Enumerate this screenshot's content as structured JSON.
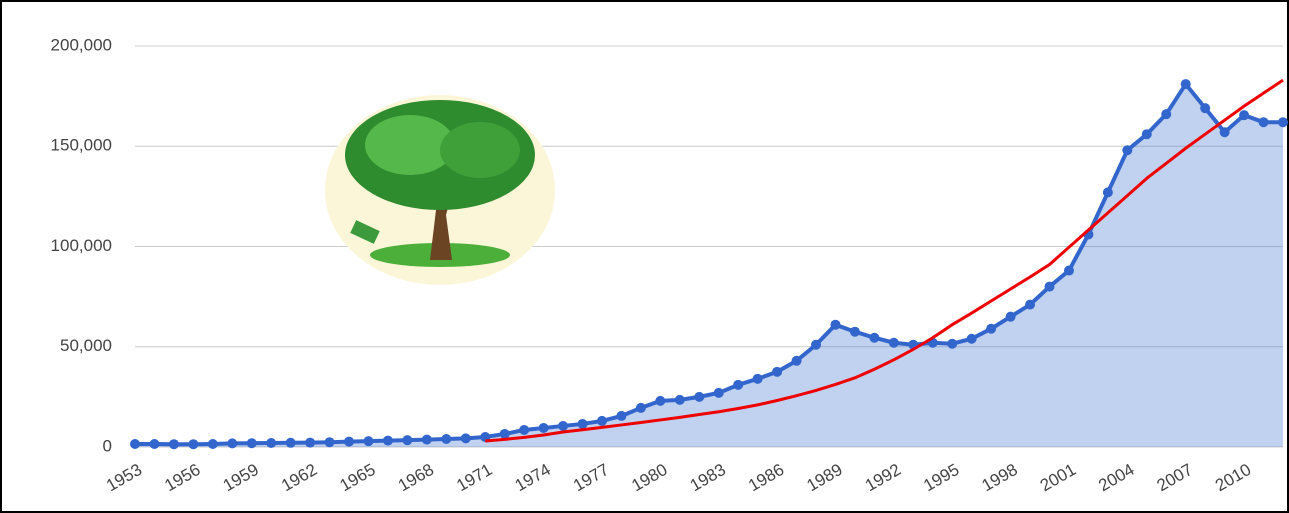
{
  "chart_data": {
    "type": "area",
    "categories": [
      "1953",
      null,
      null,
      "1956",
      null,
      null,
      "1959",
      null,
      null,
      "1962",
      null,
      null,
      "1965",
      null,
      null,
      "1968",
      null,
      null,
      "1971",
      null,
      null,
      "1974",
      null,
      null,
      "1977",
      null,
      null,
      "1980",
      null,
      null,
      "1983",
      null,
      null,
      "1986",
      null,
      null,
      "1989",
      null,
      null,
      "1992",
      null,
      null,
      "1995",
      null,
      null,
      "1998",
      null,
      null,
      "2001",
      null,
      null,
      "2004",
      null,
      null,
      "2007",
      null,
      null,
      "2010",
      null,
      null
    ],
    "series": [
      {
        "color": "#3366cc",
        "values": [
          1500,
          1500,
          1400,
          1400,
          1500,
          1800,
          1900,
          2000,
          2100,
          2200,
          2400,
          2700,
          2900,
          3200,
          3400,
          3700,
          4000,
          4300,
          5000,
          6500,
          8500,
          9500,
          10500,
          11500,
          13000,
          15500,
          19500,
          23000,
          23500,
          25000,
          27000,
          31000,
          34000,
          37500,
          43000,
          51000,
          61000,
          57500,
          54500,
          52000,
          51000,
          52000,
          51500,
          54000,
          59000,
          65000,
          71000,
          80000,
          88000,
          106000,
          127000,
          148000,
          156000,
          166000,
          181000,
          169000,
          157000,
          165500,
          162000,
          162000
        ]
      },
      {
        "color": "#ee0000",
        "values": [
          null,
          null,
          null,
          null,
          null,
          null,
          null,
          null,
          null,
          null,
          null,
          null,
          null,
          null,
          null,
          null,
          null,
          null,
          3000,
          3800,
          4800,
          6000,
          7500,
          8600,
          9800,
          11000,
          12200,
          13500,
          14800,
          16200,
          17600,
          19200,
          21000,
          23200,
          25600,
          28200,
          31200,
          34500,
          38800,
          43500,
          48700,
          54500,
          61000,
          66800,
          72800,
          78800,
          84800,
          91000,
          99600,
          108200,
          116800,
          125400,
          134000,
          141500,
          149000,
          156000,
          163000,
          170000,
          176500,
          183000
        ]
      }
    ],
    "ylim": [
      0,
      200000
    ],
    "yticks": [
      0,
      {
        "value": 50000,
        "label": "50,000"
      },
      {
        "value": 100000,
        "label": "100,000"
      },
      {
        "value": 150000,
        "label": "150,000"
      },
      {
        "value": 200000,
        "label": "200,000"
      }
    ],
    "grid": true
  }
}
